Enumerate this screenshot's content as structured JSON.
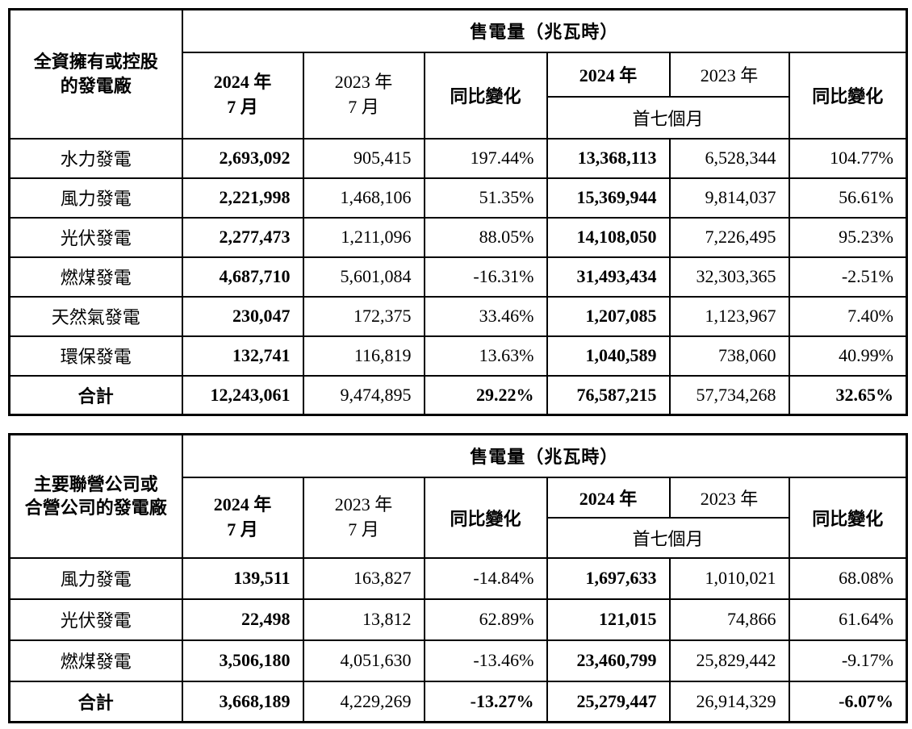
{
  "page": {
    "background": "#ffffff",
    "text_color": "#000000",
    "border_color": "#000000"
  },
  "columns": {
    "sales_title": "售電量（兆瓦時）",
    "month_2024": [
      "2024 年",
      "7 月"
    ],
    "month_2023": [
      "2023 年",
      "7 月"
    ],
    "yoy": "同比變化",
    "ytd_2024": "2024 年",
    "ytd_2023": "2023 年",
    "first_seven_months": "首七個月"
  },
  "tables": [
    {
      "owner_lines": [
        "全資擁有或控股",
        "的發電廠"
      ],
      "rows": [
        {
          "label": "水力發電",
          "m2024": "2,693,092",
          "m2023": "905,415",
          "yoy_m": "197.44%",
          "ytd2024": "13,368,113",
          "ytd2023": "6,528,344",
          "yoy_ytd": "104.77%"
        },
        {
          "label": "風力發電",
          "m2024": "2,221,998",
          "m2023": "1,468,106",
          "yoy_m": "51.35%",
          "ytd2024": "15,369,944",
          "ytd2023": "9,814,037",
          "yoy_ytd": "56.61%"
        },
        {
          "label": "光伏發電",
          "m2024": "2,277,473",
          "m2023": "1,211,096",
          "yoy_m": "88.05%",
          "ytd2024": "14,108,050",
          "ytd2023": "7,226,495",
          "yoy_ytd": "95.23%"
        },
        {
          "label": "燃煤發電",
          "m2024": "4,687,710",
          "m2023": "5,601,084",
          "yoy_m": "-16.31%",
          "ytd2024": "31,493,434",
          "ytd2023": "32,303,365",
          "yoy_ytd": "-2.51%"
        },
        {
          "label": "天然氣發電",
          "m2024": "230,047",
          "m2023": "172,375",
          "yoy_m": "33.46%",
          "ytd2024": "1,207,085",
          "ytd2023": "1,123,967",
          "yoy_ytd": "7.40%"
        },
        {
          "label": "環保發電",
          "m2024": "132,741",
          "m2023": "116,819",
          "yoy_m": "13.63%",
          "ytd2024": "1,040,589",
          "ytd2023": "738,060",
          "yoy_ytd": "40.99%"
        },
        {
          "label": "合計",
          "m2024": "12,243,061",
          "m2023": "9,474,895",
          "yoy_m": "29.22%",
          "ytd2024": "76,587,215",
          "ytd2023": "57,734,268",
          "yoy_ytd": "32.65%"
        }
      ]
    },
    {
      "owner_lines": [
        "主要聯營公司或",
        "合營公司的發電廠"
      ],
      "rows": [
        {
          "label": "風力發電",
          "m2024": "139,511",
          "m2023": "163,827",
          "yoy_m": "-14.84%",
          "ytd2024": "1,697,633",
          "ytd2023": "1,010,021",
          "yoy_ytd": "68.08%"
        },
        {
          "label": "光伏發電",
          "m2024": "22,498",
          "m2023": "13,812",
          "yoy_m": "62.89%",
          "ytd2024": "121,015",
          "ytd2023": "74,866",
          "yoy_ytd": "61.64%"
        },
        {
          "label": "燃煤發電",
          "m2024": "3,506,180",
          "m2023": "4,051,630",
          "yoy_m": "-13.46%",
          "ytd2024": "23,460,799",
          "ytd2023": "25,829,442",
          "yoy_ytd": "-9.17%"
        },
        {
          "label": "合計",
          "m2024": "3,668,189",
          "m2023": "4,229,269",
          "yoy_m": "-13.27%",
          "ytd2024": "25,279,447",
          "ytd2023": "26,914,329",
          "yoy_ytd": "-6.07%"
        }
      ]
    }
  ]
}
